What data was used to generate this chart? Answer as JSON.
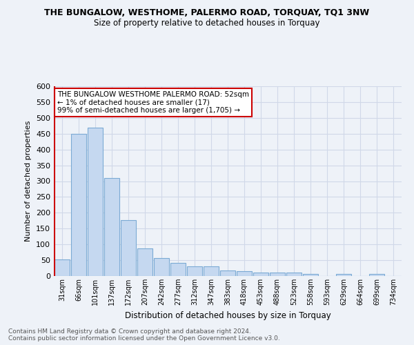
{
  "title": "THE BUNGALOW, WESTHOME, PALERMO ROAD, TORQUAY, TQ1 3NW",
  "subtitle": "Size of property relative to detached houses in Torquay",
  "xlabel": "Distribution of detached houses by size in Torquay",
  "ylabel": "Number of detached properties",
  "bar_labels": [
    "31sqm",
    "66sqm",
    "101sqm",
    "137sqm",
    "172sqm",
    "207sqm",
    "242sqm",
    "277sqm",
    "312sqm",
    "347sqm",
    "383sqm",
    "418sqm",
    "453sqm",
    "488sqm",
    "523sqm",
    "558sqm",
    "593sqm",
    "629sqm",
    "664sqm",
    "699sqm",
    "734sqm"
  ],
  "bar_heights": [
    52,
    450,
    470,
    310,
    177,
    88,
    57,
    42,
    31,
    31,
    17,
    16,
    10,
    10,
    10,
    6,
    0,
    6,
    0,
    6,
    0
  ],
  "bar_color": "#c5d8f0",
  "bar_edge_color": "#7baad4",
  "grid_color": "#d0d8e8",
  "annotation_line1": "THE BUNGALOW WESTHOME PALERMO ROAD: 52sqm",
  "annotation_line2": "← 1% of detached houses are smaller (17)",
  "annotation_line3": "99% of semi-detached houses are larger (1,705) →",
  "annotation_box_color": "#ffffff",
  "annotation_box_edge_color": "#cc0000",
  "property_line_color": "#cc0000",
  "ylim": [
    0,
    600
  ],
  "yticks": [
    0,
    50,
    100,
    150,
    200,
    250,
    300,
    350,
    400,
    450,
    500,
    550,
    600
  ],
  "footer": "Contains HM Land Registry data © Crown copyright and database right 2024.\nContains public sector information licensed under the Open Government Licence v3.0.",
  "background_color": "#eef2f8",
  "plot_background_color": "#eef2f8"
}
